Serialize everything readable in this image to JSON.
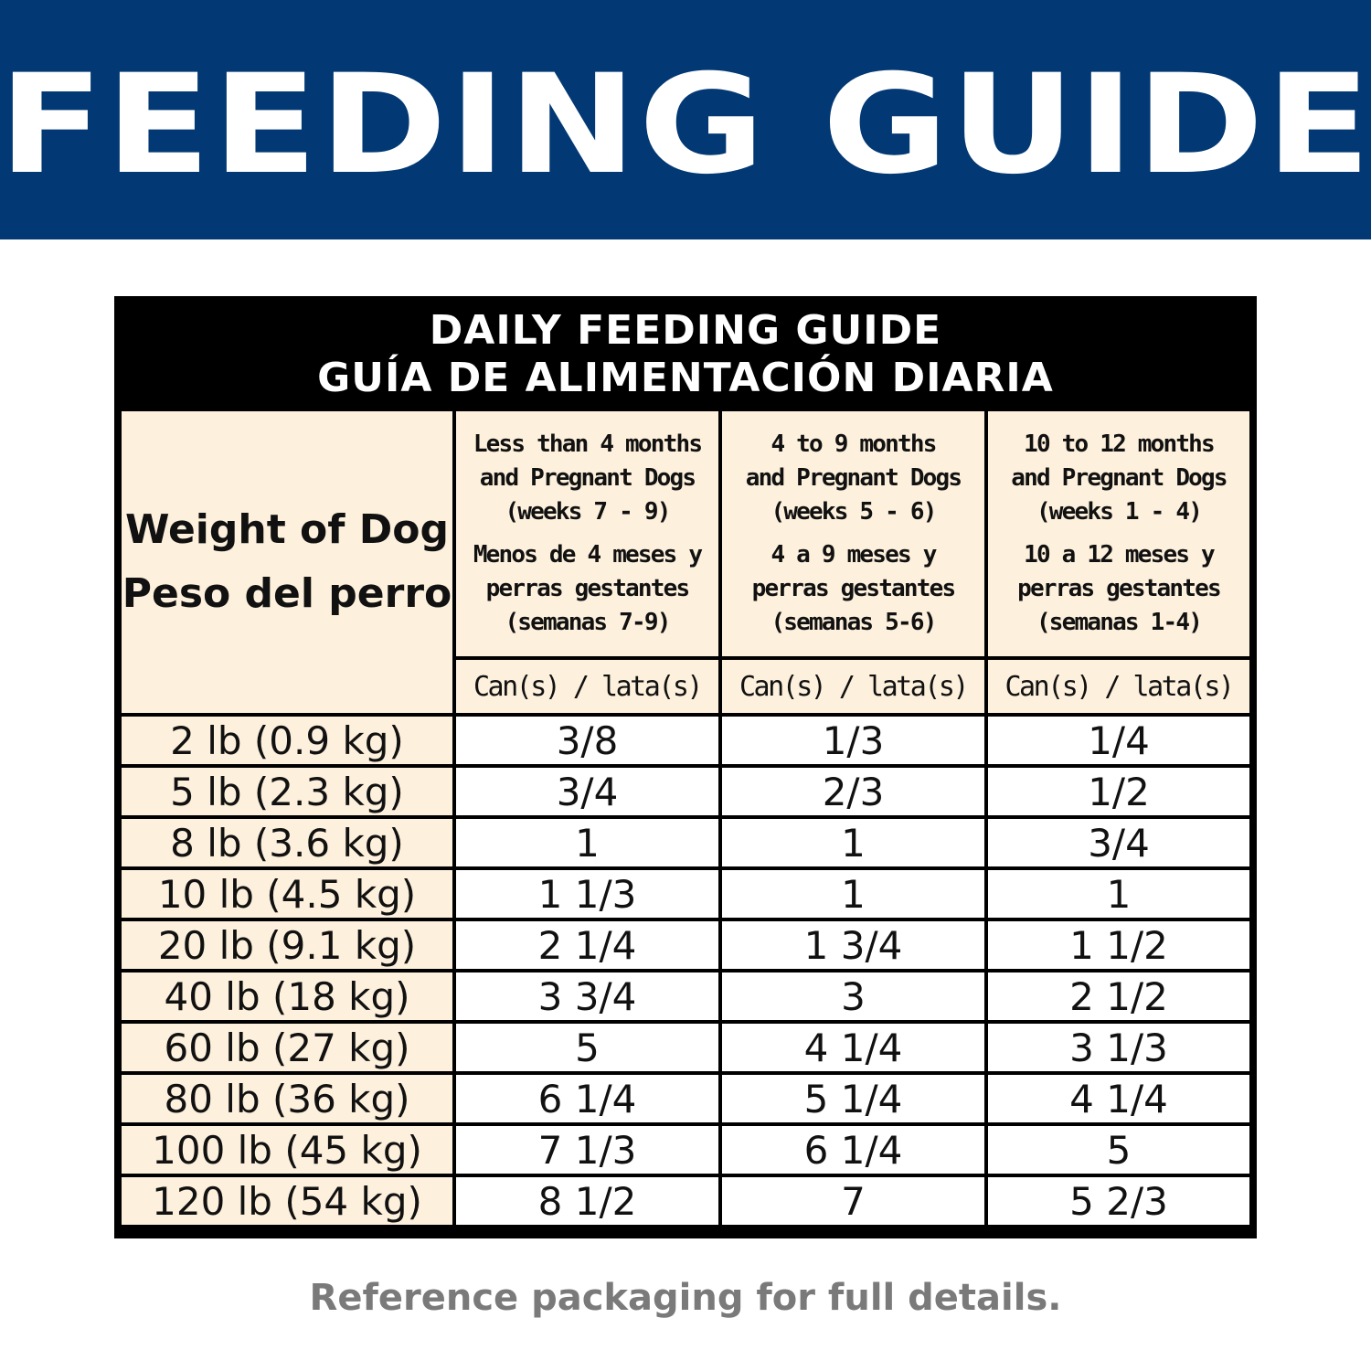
{
  "banner": {
    "title": "FEEDING GUIDE"
  },
  "guide": {
    "title_en": "DAILY FEEDING GUIDE",
    "title_es": "GUÍA DE ALIMENTACIÓN DIARIA",
    "weight_header_en": "Weight of Dog",
    "weight_header_es": "Peso del perro",
    "columns": [
      {
        "en": [
          "Less than 4 months",
          "and Pregnant Dogs",
          "(weeks 7 - 9)"
        ],
        "es": [
          "Menos de 4 meses y",
          "perras gestantes",
          "(semanas 7-9)"
        ],
        "unit": "Can(s) / lata(s)"
      },
      {
        "en": [
          "4 to 9 months",
          "and Pregnant Dogs",
          "(weeks 5 - 6)"
        ],
        "es": [
          "4 a 9 meses y",
          "perras gestantes",
          "(semanas 5-6)"
        ],
        "unit": "Can(s) / lata(s)"
      },
      {
        "en": [
          "10 to 12 months",
          "and Pregnant Dogs",
          "(weeks 1 - 4)"
        ],
        "es": [
          "10 a 12 meses y",
          "perras gestantes",
          "(semanas 1-4)"
        ],
        "unit": "Can(s) / lata(s)"
      }
    ],
    "rows": [
      {
        "weight": "2 lb (0.9 kg)",
        "values": [
          "3/8",
          "1/3",
          "1/4"
        ]
      },
      {
        "weight": "5 lb (2.3 kg)",
        "values": [
          "3/4",
          "2/3",
          "1/2"
        ]
      },
      {
        "weight": "8 lb (3.6 kg)",
        "values": [
          "1",
          "1",
          "3/4"
        ]
      },
      {
        "weight": "10 lb (4.5 kg)",
        "values": [
          "1 1/3",
          "1",
          "1"
        ]
      },
      {
        "weight": "20 lb (9.1 kg)",
        "values": [
          "2 1/4",
          "1 3/4",
          "1 1/2"
        ]
      },
      {
        "weight": "40 lb (18 kg)",
        "values": [
          "3 3/4",
          "3",
          "2 1/2"
        ]
      },
      {
        "weight": "60 lb (27 kg)",
        "values": [
          "5",
          "4 1/4",
          "3 1/3"
        ]
      },
      {
        "weight": "80 lb (36 kg)",
        "values": [
          "6 1/4",
          "5 1/4",
          "4 1/4"
        ]
      },
      {
        "weight": "100 lb (45 kg)",
        "values": [
          "7 1/3",
          "6 1/4",
          "5"
        ]
      },
      {
        "weight": "120 lb (54 kg)",
        "values": [
          "8 1/2",
          "7",
          "5 2/3"
        ]
      }
    ]
  },
  "footer": {
    "note": "Reference packaging for full details."
  },
  "colors": {
    "banner": "#023873",
    "cream": "#fdf0dc",
    "border": "#000000",
    "footer_text": "#7a7a7a"
  }
}
